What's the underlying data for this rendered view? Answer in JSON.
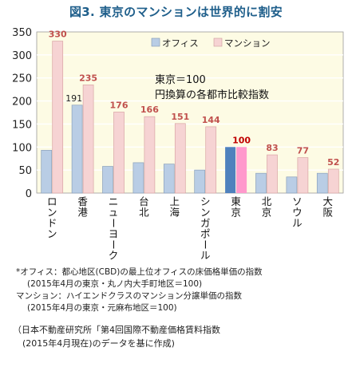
{
  "title": "図3. 東京のマンションは世界的に割安",
  "chart_data": {
    "type": "bar",
    "categories": [
      "ロンドン",
      "香港",
      "ニューヨーク",
      "台北",
      "上海",
      "シンガポール",
      "東京",
      "北京",
      "ソウル",
      "大阪"
    ],
    "series": [
      {
        "name": "オフィス",
        "values": [
          93,
          191,
          58,
          66,
          63,
          50,
          100,
          43,
          35,
          43
        ],
        "color": "#b9cde5"
      },
      {
        "name": "マンション",
        "values": [
          330,
          235,
          176,
          166,
          151,
          144,
          100,
          83,
          77,
          52
        ],
        "color": "#f6d3d3"
      }
    ],
    "data_labels": [
      "330",
      "191",
      "235",
      "176",
      "166",
      "151",
      "144",
      "100",
      "83",
      "77",
      "52"
    ],
    "ylim": [
      0,
      350
    ],
    "yticks": [
      0,
      50,
      100,
      150,
      200,
      250,
      300,
      350
    ],
    "grid": true,
    "legend": "top-right",
    "highlight": {
      "category": "東京",
      "office_color": "#4f81bd",
      "residential_color": "#ff99cc"
    },
    "label_colors": {
      "residential": "#c0504d",
      "office": "#222222"
    },
    "annotation": [
      "東京＝100",
      "円換算の各都市比較指数"
    ]
  },
  "notes": [
    "*オフィス：都心地区(CBD)の最上位オフィスの床価格単価の指数",
    "(2015年4月の東京・丸ノ内大手町地区＝100)",
    "マンション：ハイエンドクラスのマンション分譲単価の指数",
    "(2015年4月の東京・元麻布地区＝100)"
  ],
  "source": [
    "（日本不動産研究所「第4回国際不動産価格賃料指数",
    "(2015年4月現在)のデータを基に作成)"
  ],
  "colors": {
    "plot_bg": "#fdfbe4",
    "grid": "#ffffff",
    "title": "#1f5f8b"
  }
}
